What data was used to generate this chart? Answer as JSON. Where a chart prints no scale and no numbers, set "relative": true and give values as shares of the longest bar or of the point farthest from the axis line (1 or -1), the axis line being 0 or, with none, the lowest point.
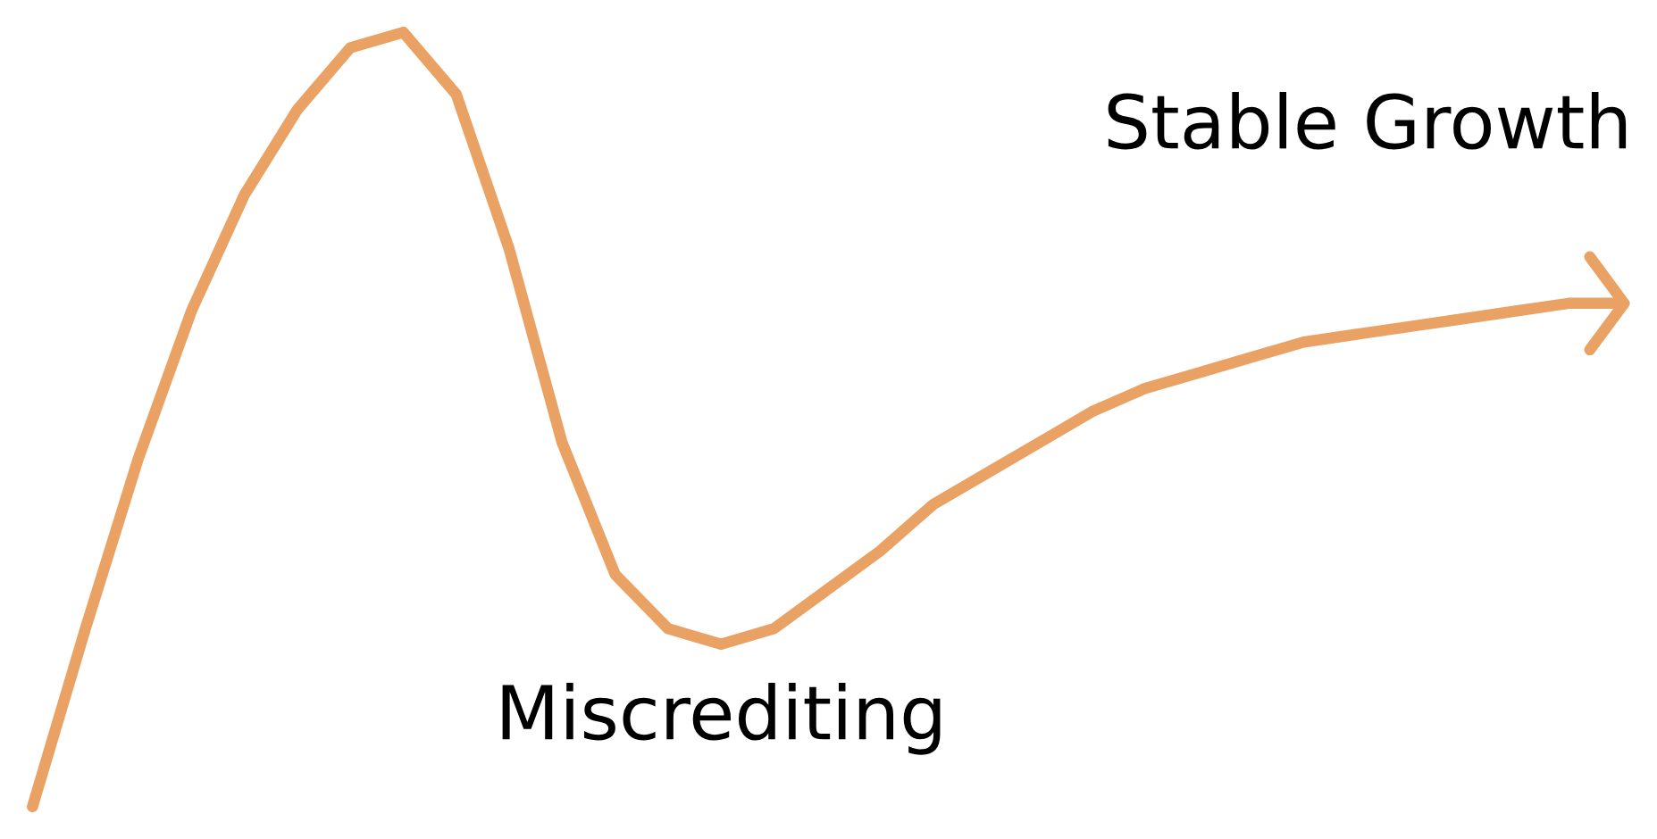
{
  "chart_data": {
    "type": "line",
    "relative": true,
    "categories": [
      null,
      null,
      null,
      null,
      null,
      null,
      null,
      null,
      null,
      null,
      null,
      null,
      null,
      null,
      null,
      null,
      null,
      null,
      null,
      null,
      null,
      null,
      null,
      null,
      null,
      null,
      null,
      null,
      null,
      null,
      null
    ],
    "series": [
      {
        "color": "#e9a263",
        "values": [
          0,
          0.23,
          0.45,
          0.64,
          0.79,
          0.9,
          0.98,
          1.0,
          0.92,
          0.72,
          0.47,
          0.3,
          0.23,
          0.21,
          0.23,
          0.28,
          0.33,
          0.39,
          0.43,
          0.47,
          0.51,
          0.54,
          0.56,
          0.58,
          0.6,
          0.61,
          0.62,
          0.63,
          0.64,
          0.65,
          0.65
        ]
      }
    ],
    "annotations": [
      "Miscrediting",
      "Stable Growth"
    ],
    "line_style": "solid"
  }
}
